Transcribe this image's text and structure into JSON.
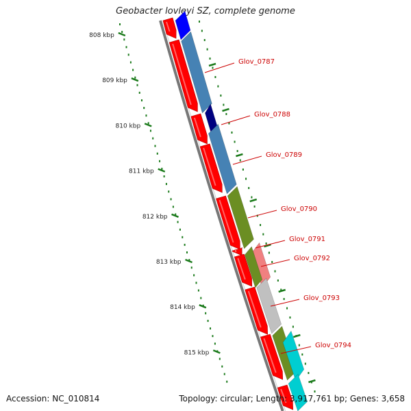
{
  "title": "Geobacter lovleyi SZ, complete genome",
  "footer": {
    "accession": "Accession: NC_010814",
    "summary": "Topology: circular; Length: 3,917,761 bp; Genes: 3,658"
  },
  "ticks": [
    "808 kbp",
    "809 kbp",
    "810 kbp",
    "811 kbp",
    "812 kbp",
    "813 kbp",
    "814 kbp",
    "815 kbp"
  ],
  "gene_labels": [
    "Glov_0787",
    "Glov_0788",
    "Glov_0789",
    "Glov_0790",
    "Glov_0791",
    "Glov_0792",
    "Glov_0793",
    "Glov_0794"
  ],
  "colors": {
    "cds": "#ff0000",
    "label": "#cc0000",
    "tick": "#1a7a1a",
    "backbone": "#888888",
    "blue": "#0000ff",
    "steelblue": "#4682b4",
    "navy": "#000080",
    "olive": "#6b8e23",
    "salmon": "#f08080",
    "silver": "#c0c0c0",
    "cyan": "#00ced1"
  }
}
